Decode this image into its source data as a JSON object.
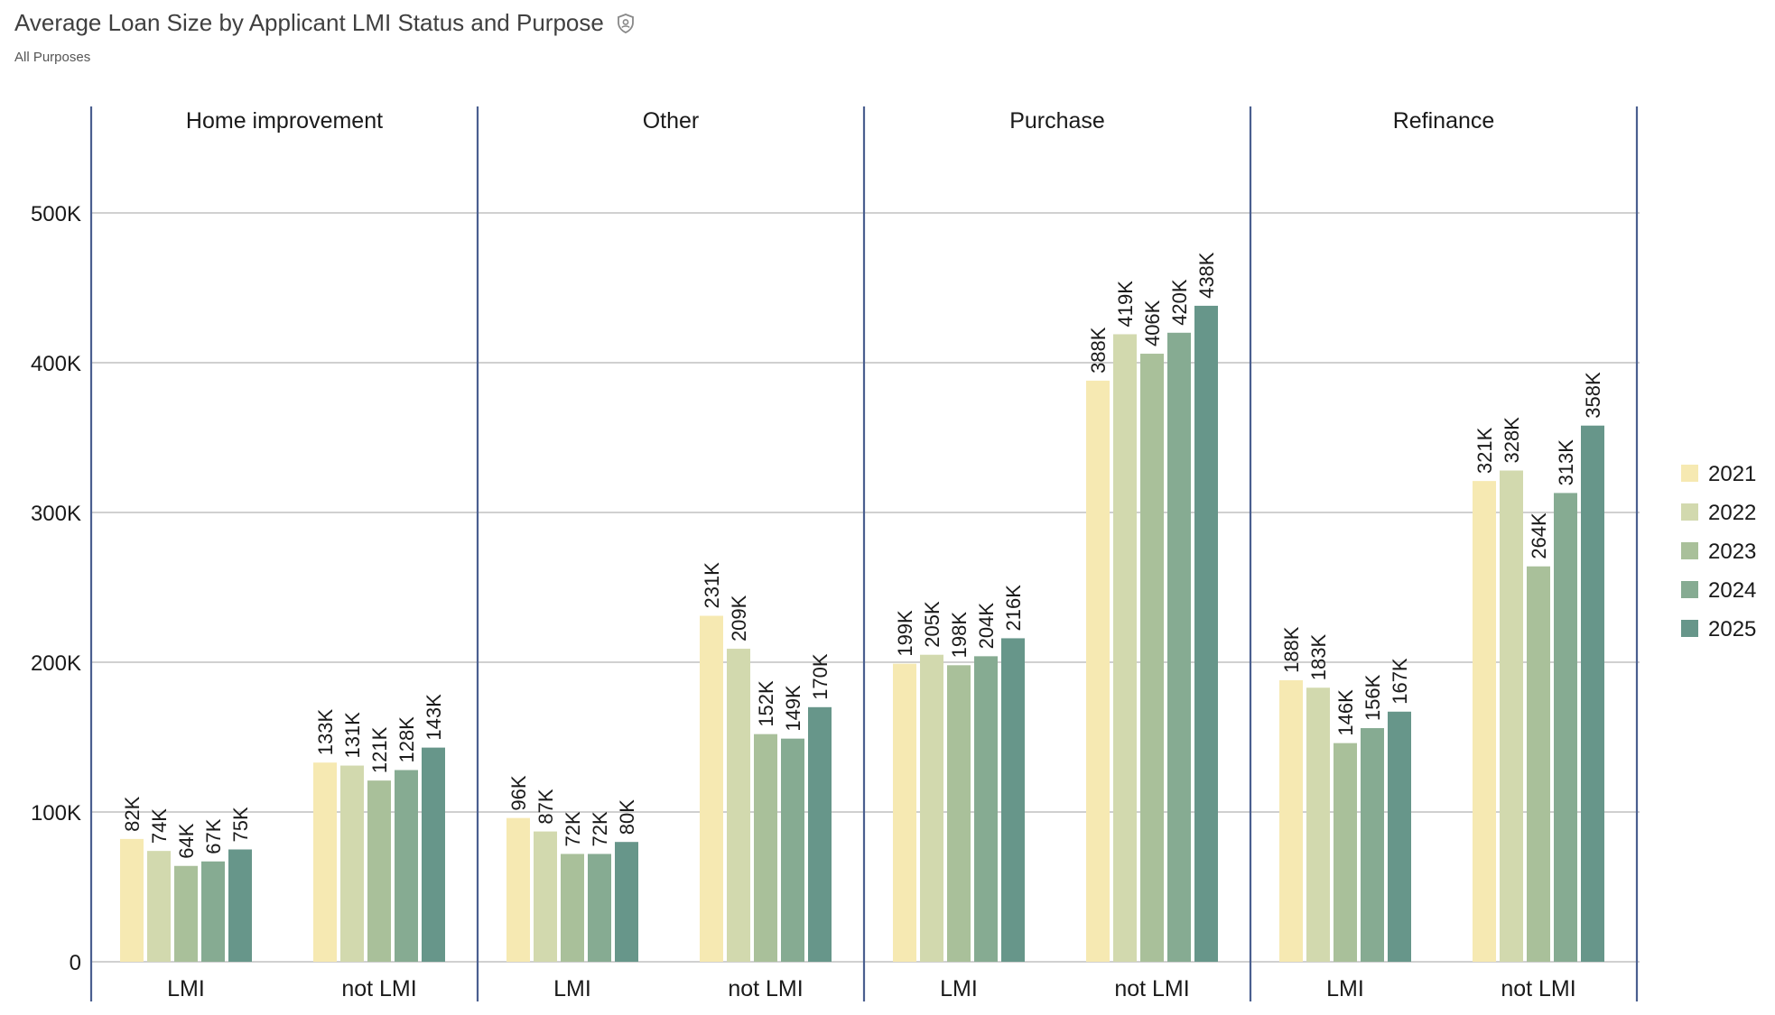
{
  "header": {
    "title": "Average Loan Size by Applicant LMI Status and Purpose",
    "subtitle": "All Purposes",
    "title_icon": "shield-icon"
  },
  "chart_data": {
    "type": "bar",
    "title": "Average Loan Size by Applicant LMI Status and Purpose",
    "subtitle": "All Purposes",
    "panels": [
      "Home improvement",
      "Other",
      "Purchase",
      "Refinance"
    ],
    "categories": [
      "LMI",
      "not LMI"
    ],
    "series": [
      {
        "name": "2021",
        "color": "#f6e9b2",
        "values": [
          [
            82,
            133
          ],
          [
            96,
            231
          ],
          [
            199,
            388
          ],
          [
            188,
            321
          ]
        ],
        "labels": [
          [
            "82K",
            "133K"
          ],
          [
            "96K",
            "231K"
          ],
          [
            "199K",
            "388K"
          ],
          [
            "188K",
            "321K"
          ]
        ]
      },
      {
        "name": "2022",
        "color": "#d2d9ae",
        "values": [
          [
            74,
            131
          ],
          [
            87,
            209
          ],
          [
            205,
            419
          ],
          [
            183,
            328
          ]
        ],
        "labels": [
          [
            "74K",
            "131K"
          ],
          [
            "87K",
            "209K"
          ],
          [
            "205K",
            "419K"
          ],
          [
            "183K",
            "328K"
          ]
        ]
      },
      {
        "name": "2023",
        "color": "#a9c09a",
        "values": [
          [
            64,
            121
          ],
          [
            72,
            152
          ],
          [
            198,
            406
          ],
          [
            146,
            264
          ]
        ],
        "labels": [
          [
            "64K",
            "121K"
          ],
          [
            "72K",
            "152K"
          ],
          [
            "198K",
            "406K"
          ],
          [
            "146K",
            "264K"
          ]
        ]
      },
      {
        "name": "2024",
        "color": "#86ab92",
        "values": [
          [
            67,
            128
          ],
          [
            72,
            149
          ],
          [
            204,
            420
          ],
          [
            156,
            313
          ]
        ],
        "labels": [
          [
            "67K",
            "128K"
          ],
          [
            "72K",
            "149K"
          ],
          [
            "204K",
            "420K"
          ],
          [
            "156K",
            "313K"
          ]
        ]
      },
      {
        "name": "2025",
        "color": "#67968a",
        "values": [
          [
            75,
            143
          ],
          [
            80,
            170
          ],
          [
            216,
            438
          ],
          [
            167,
            358
          ]
        ],
        "labels": [
          [
            "75K",
            "143K"
          ],
          [
            "80K",
            "170K"
          ],
          [
            "216K",
            "438K"
          ],
          [
            "167K",
            "358K"
          ]
        ]
      }
    ],
    "value_unit": "K",
    "ylim": [
      0,
      500
    ],
    "yticks": [
      0,
      100,
      200,
      300,
      400,
      500
    ],
    "ytick_labels": [
      "0",
      "100K",
      "200K",
      "300K",
      "400K",
      "500K"
    ],
    "grid": true,
    "legend_position": "right",
    "panel_divider_color": "#4a5f8f",
    "grid_color": "#d0d0d0"
  }
}
